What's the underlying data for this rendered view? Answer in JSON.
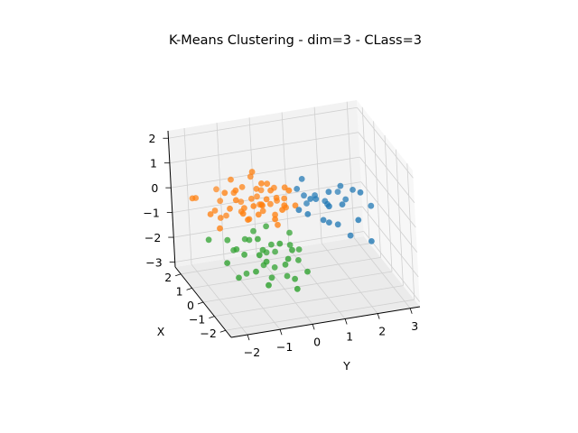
{
  "chart_data": {
    "type": "scatter",
    "title": "K-Means Clustering - dim=3 - CLass=3",
    "xlabel": "Y",
    "ylabel": "X",
    "zlabel": "",
    "x_ticks": [
      "−2",
      "−1",
      "0",
      "1",
      "2",
      "3"
    ],
    "y_ticks": [
      "2",
      "1",
      "0",
      "−1",
      "−2"
    ],
    "z_ticks": [
      "2",
      "1",
      "0",
      "−1",
      "−2",
      "−3"
    ],
    "grid": true,
    "colors": {
      "cluster_0": "#1f77b4",
      "cluster_1": "#ff7f0e",
      "cluster_2": "#2ca02c",
      "pane": "#f2f2f2",
      "pane_dark": "#ebebeb",
      "grid": "#d0d0d0"
    },
    "series": [
      {
        "color": "#ff7f0e",
        "points": [
          [
            -2.4,
            0.5,
            0.7
          ],
          [
            -1.9,
            0.3,
            0.2
          ],
          [
            -1.6,
            -0.2,
            0.5
          ],
          [
            -1.3,
            0.1,
            1.0
          ],
          [
            -1.0,
            0.4,
            0.9
          ],
          [
            -0.8,
            0.0,
            1.7
          ],
          [
            -0.7,
            -0.5,
            0.6
          ],
          [
            -0.5,
            0.6,
            0.3
          ],
          [
            -0.3,
            -0.1,
            0.9
          ],
          [
            -0.2,
            0.3,
            0.1
          ],
          [
            0.0,
            -0.4,
            0.4
          ],
          [
            0.2,
            0.1,
            0.8
          ],
          [
            0.4,
            -0.2,
            0.2
          ],
          [
            -1.5,
            0.5,
            -0.2
          ],
          [
            -1.1,
            -0.3,
            0.0
          ],
          [
            -0.9,
            0.2,
            -0.3
          ],
          [
            -0.6,
            -0.2,
            1.3
          ],
          [
            -0.4,
            0.7,
            -0.1
          ],
          [
            -0.1,
            0.0,
            0.5
          ],
          [
            0.1,
            -0.6,
            1.1
          ],
          [
            0.3,
            0.4,
            -0.2
          ],
          [
            -1.7,
            -0.1,
            1.1
          ],
          [
            -1.2,
            0.6,
            0.6
          ],
          [
            -0.8,
            -0.4,
            0.2
          ],
          [
            -0.5,
            0.1,
            0.0
          ],
          [
            -0.2,
            -0.3,
            -0.4
          ],
          [
            0.0,
            0.5,
            0.6
          ],
          [
            -2.0,
            -0.4,
            -0.1
          ],
          [
            -1.4,
            0.2,
            1.4
          ],
          [
            -1.0,
            -0.6,
            0.7
          ],
          [
            -0.6,
            0.3,
            0.8
          ],
          [
            -0.3,
            0.8,
            0.4
          ],
          [
            -0.9,
            0.9,
            0.0
          ],
          [
            -1.6,
            0.7,
            0.3
          ],
          [
            -0.4,
            -0.7,
            0.1
          ],
          [
            0.2,
            0.2,
            0.3
          ],
          [
            -1.8,
            0.1,
            0.0
          ],
          [
            -1.3,
            -0.5,
            0.4
          ],
          [
            -0.7,
            0.5,
            1.2
          ],
          [
            -0.2,
            -0.1,
            -0.1
          ],
          [
            -2.6,
            0.2,
            0.9
          ],
          [
            -1.1,
            0.0,
            0.3
          ],
          [
            -0.5,
            -0.3,
            0.7
          ],
          [
            0.1,
            0.6,
            0.0
          ],
          [
            -0.8,
            0.2,
            0.5
          ],
          [
            -1.4,
            -0.2,
            0.8
          ],
          [
            -0.3,
            0.2,
            1.0
          ],
          [
            -2.2,
            -0.2,
            0.4
          ],
          [
            -1.6,
            1.0,
            0.6
          ],
          [
            -0.1,
            -0.5,
            0.3
          ],
          [
            -1.0,
            0.6,
            -0.2
          ],
          [
            -0.6,
            -0.1,
            0.4
          ]
        ]
      },
      {
        "color": "#1f77b4",
        "points": [
          [
            0.6,
            0.2,
            0.6
          ],
          [
            0.9,
            -0.1,
            0.3
          ],
          [
            1.2,
            0.4,
            0.1
          ],
          [
            1.5,
            0.0,
            0.4
          ],
          [
            1.8,
            -0.3,
            0.0
          ],
          [
            2.1,
            0.3,
            -0.2
          ],
          [
            2.4,
            -0.2,
            0.3
          ],
          [
            2.8,
            0.1,
            -0.5
          ],
          [
            0.7,
            -0.4,
            -0.1
          ],
          [
            1.0,
            0.6,
            -0.3
          ],
          [
            1.3,
            -0.6,
            0.2
          ],
          [
            1.6,
            0.5,
            -0.4
          ],
          [
            1.9,
            0.1,
            0.5
          ],
          [
            2.2,
            -0.5,
            -0.6
          ],
          [
            0.8,
            0.3,
            0.9
          ],
          [
            1.4,
            -0.2,
            -0.7
          ],
          [
            2.0,
            0.7,
            -0.1
          ],
          [
            2.6,
            -0.4,
            -1.6
          ],
          [
            1.1,
            0.0,
            0.2
          ],
          [
            1.7,
            -0.1,
            -0.9
          ],
          [
            0.5,
            -0.2,
            0.0
          ],
          [
            2.3,
            0.2,
            0.2
          ],
          [
            1.2,
            -0.3,
            -0.5
          ],
          [
            0.9,
            0.5,
            0.1
          ],
          [
            1.5,
            0.4,
            -0.2
          ],
          [
            2.0,
            -0.3,
            -1.3
          ]
        ]
      },
      {
        "color": "#2ca02c",
        "points": [
          [
            -1.6,
            0.2,
            -1.0
          ],
          [
            -1.2,
            -0.1,
            -1.5
          ],
          [
            -0.9,
            0.3,
            -1.2
          ],
          [
            -0.6,
            -0.3,
            -1.8
          ],
          [
            -0.3,
            0.1,
            -1.4
          ],
          [
            0.0,
            -0.2,
            -2.1
          ],
          [
            0.3,
            0.2,
            -1.6
          ],
          [
            0.6,
            -0.4,
            -2.4
          ],
          [
            -1.0,
            -0.5,
            -2.0
          ],
          [
            -0.7,
            0.5,
            -1.0
          ],
          [
            -0.4,
            -0.1,
            -2.6
          ],
          [
            -0.1,
            0.4,
            -1.9
          ],
          [
            0.2,
            -0.6,
            -2.9
          ],
          [
            0.5,
            0.1,
            -2.2
          ],
          [
            -1.3,
            0.6,
            -1.7
          ],
          [
            -0.8,
            -0.2,
            -0.9
          ],
          [
            -0.5,
            0.3,
            -2.3
          ],
          [
            -0.2,
            -0.4,
            -1.1
          ],
          [
            0.1,
            0.0,
            -2.7
          ],
          [
            0.4,
            0.5,
            -1.3
          ],
          [
            -1.8,
            -0.3,
            -1.6
          ],
          [
            -1.1,
            0.1,
            -2.4
          ],
          [
            -0.6,
            0.0,
            -1.5
          ],
          [
            -0.3,
            0.6,
            -2.0
          ],
          [
            0.0,
            -0.5,
            -1.7
          ],
          [
            -0.9,
            -0.6,
            -1.3
          ],
          [
            0.3,
            -0.1,
            -2.8
          ],
          [
            -1.5,
            -0.4,
            -2.2
          ],
          [
            -2.2,
            0.1,
            -0.8
          ],
          [
            -0.4,
            0.2,
            -0.7
          ],
          [
            0.6,
            0.3,
            -1.9
          ],
          [
            -0.7,
            -0.7,
            -2.5
          ],
          [
            -1.0,
            0.4,
            -1.2
          ],
          [
            0.2,
            -0.3,
            -1.5
          ],
          [
            -0.2,
            0.2,
            -2.4
          ],
          [
            -1.4,
            0.0,
            -1.3
          ]
        ]
      }
    ]
  }
}
